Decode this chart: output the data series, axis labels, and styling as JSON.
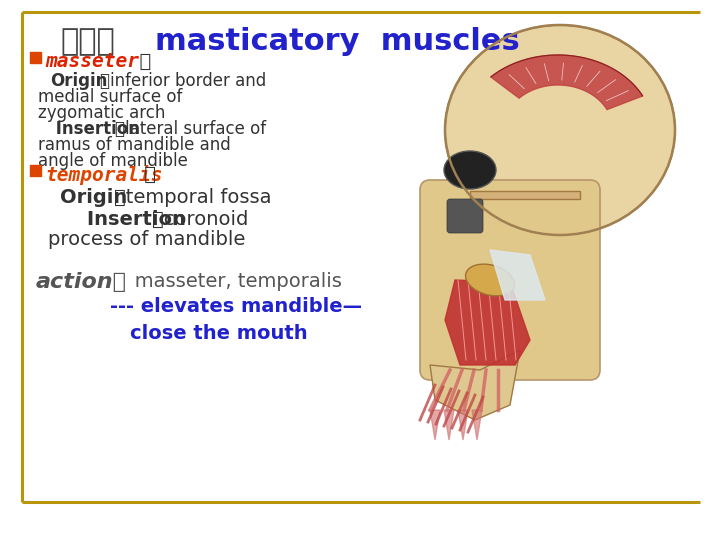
{
  "bg_color": "#ffffff",
  "border_color": "#b8960c",
  "title_chinese": "（二）",
  "title_english": "masticatory  muscles",
  "title_color": "#2222cc",
  "title_chinese_color": "#444444",
  "title_fontsize": 22,
  "masseter_bullet_color": "#dd4400",
  "masseter_label": "masseter",
  "masseter_label_color": "#dd2200",
  "masseter_colon": "  ：",
  "masseter_origin_bold": "Origin",
  "masseter_origin_rest": "－inferior border and",
  "masseter_origin_line2": "medial surface of",
  "masseter_origin_line3": "zygomatic arch",
  "masseter_insertion_bold": "Insertion",
  "masseter_insertion_rest": "－lateral surface of",
  "masseter_insertion_line2": "ramus of mandible and",
  "masseter_insertion_line3": "angle of mandible",
  "temporalis_bullet_color": "#dd4400",
  "temporalis_label": "temporalis",
  "temporalis_label_color": "#dd4400",
  "temporalis_colon": " ：",
  "temporalis_origin_bold": "Origin",
  "temporalis_origin_rest": "－temporal fossa",
  "temporalis_insertion_bold": "    Insertion",
  "temporalis_insertion_rest": "－coronoid",
  "temporalis_insertion_line2": "process of mandible",
  "action_bold": "action：",
  "action_rest": "   masseter, temporalis",
  "action_line2": "--- elevates mandible—",
  "action_line3": "close the mouth",
  "action_color": "#2222cc",
  "action_text_color": "#555555",
  "text_color": "#333333",
  "bold_color": "#222222",
  "body_fs": 12,
  "section_fs": 13,
  "action_fs": 14,
  "title_fs": 22
}
